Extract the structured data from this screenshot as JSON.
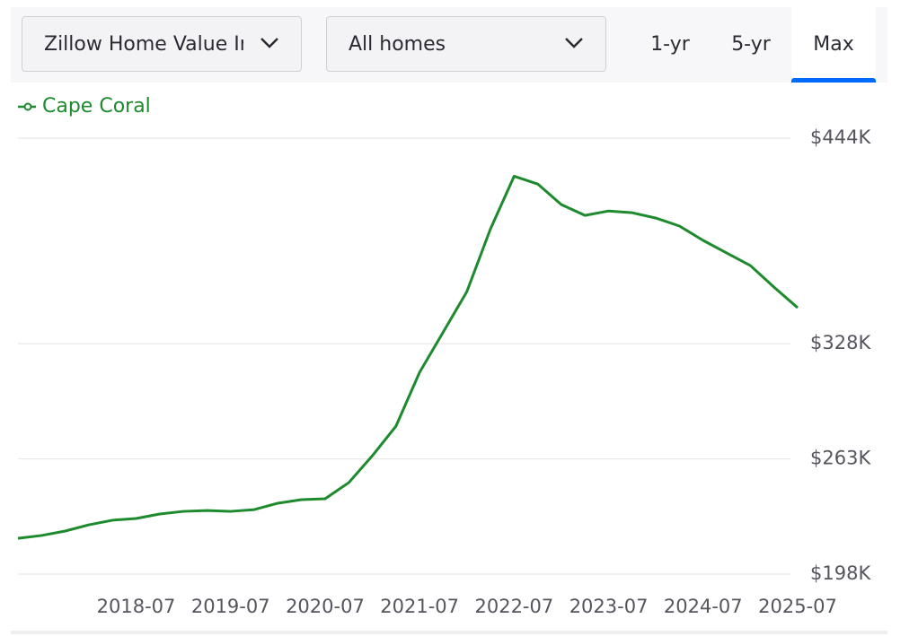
{
  "controls": {
    "dropdowns": [
      "Zillow Home Value Index",
      "All homes"
    ],
    "tabs": [
      "1-yr",
      "5-yr",
      "Max"
    ],
    "selected_tab": "Max"
  },
  "chart_data": {
    "type": "line",
    "x": [
      "2017-04",
      "2017-07",
      "2017-10",
      "2018-01",
      "2018-04",
      "2018-07",
      "2018-10",
      "2019-01",
      "2019-04",
      "2019-07",
      "2019-10",
      "2020-01",
      "2020-04",
      "2020-07",
      "2020-10",
      "2021-01",
      "2021-04",
      "2021-07",
      "2021-10",
      "2022-01",
      "2022-04",
      "2022-07",
      "2022-10",
      "2023-01",
      "2023-04",
      "2023-07",
      "2023-10",
      "2024-01",
      "2024-04",
      "2024-07",
      "2024-10",
      "2025-01",
      "2025-04",
      "2025-07"
    ],
    "series": [
      {
        "name": "Cape Coral",
        "color": "#1e8a2e",
        "values": [
          218200,
          219800,
          222300,
          225800,
          228400,
          229400,
          231900,
          233400,
          233900,
          233400,
          234400,
          238000,
          240000,
          240500,
          249600,
          264800,
          281500,
          311900,
          334600,
          357400,
          392800,
          422500,
          418100,
          406500,
          400400,
          402900,
          401900,
          398900,
          394400,
          386300,
          379200,
          372100,
          359900,
          348300
        ]
      }
    ],
    "xlim": [
      "2017-04",
      "2025-07"
    ],
    "xticks": [
      "2018-07",
      "2019-07",
      "2020-07",
      "2021-07",
      "2022-07",
      "2023-07",
      "2024-07",
      "2025-07"
    ],
    "ylim": [
      198000,
      444000
    ],
    "yticks": [
      {
        "value": 198000,
        "label": "$198K"
      },
      {
        "value": 263000,
        "label": "$263K"
      },
      {
        "value": 328000,
        "label": "$328K"
      },
      {
        "value": 444000,
        "label": "$444K"
      }
    ],
    "grid": true
  }
}
